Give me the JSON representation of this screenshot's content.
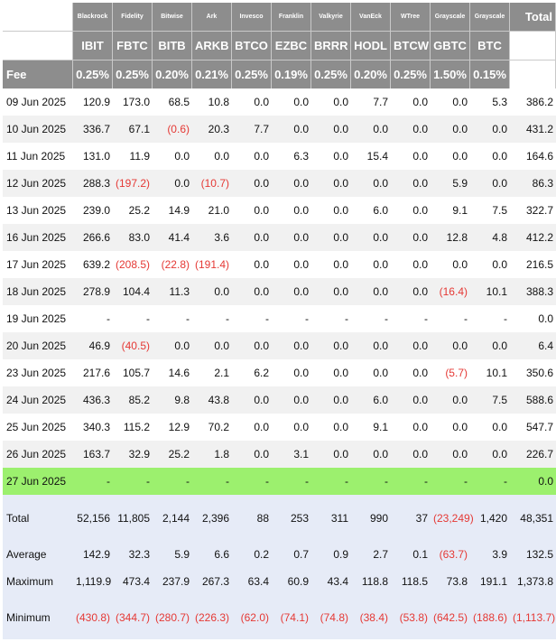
{
  "issuers": [
    "Blackrock",
    "Fidelity",
    "Bitwise",
    "Ark",
    "Invesco",
    "Franklin",
    "Valkyrie",
    "VanEck",
    "WTree",
    "Grayscale",
    "Grayscale"
  ],
  "total_label": "Total",
  "tickers": [
    "IBIT",
    "FBTC",
    "BITB",
    "ARKB",
    "BTCO",
    "EZBC",
    "BRRR",
    "HODL",
    "BTCW",
    "GBTC",
    "BTC"
  ],
  "fee_label": "Fee",
  "fees": [
    "0.25%",
    "0.25%",
    "0.20%",
    "0.21%",
    "0.25%",
    "0.19%",
    "0.25%",
    "0.20%",
    "0.25%",
    "1.50%",
    "0.15%"
  ],
  "rows": [
    {
      "date": "09 Jun 2025",
      "values": [
        "120.9",
        "173.0",
        "68.5",
        "10.8",
        "0.0",
        "0.0",
        "0.0",
        "7.7",
        "0.0",
        "0.0",
        "5.3"
      ],
      "total": "386.2"
    },
    {
      "date": "10 Jun 2025",
      "values": [
        "336.7",
        "67.1",
        "(0.6)",
        "20.3",
        "7.7",
        "0.0",
        "0.0",
        "0.0",
        "0.0",
        "0.0",
        "0.0"
      ],
      "total": "431.2"
    },
    {
      "date": "11 Jun 2025",
      "values": [
        "131.0",
        "11.9",
        "0.0",
        "0.0",
        "0.0",
        "6.3",
        "0.0",
        "15.4",
        "0.0",
        "0.0",
        "0.0"
      ],
      "total": "164.6"
    },
    {
      "date": "12 Jun 2025",
      "values": [
        "288.3",
        "(197.2)",
        "0.0",
        "(10.7)",
        "0.0",
        "0.0",
        "0.0",
        "0.0",
        "0.0",
        "5.9",
        "0.0"
      ],
      "total": "86.3"
    },
    {
      "date": "13 Jun 2025",
      "values": [
        "239.0",
        "25.2",
        "14.9",
        "21.0",
        "0.0",
        "0.0",
        "0.0",
        "6.0",
        "0.0",
        "9.1",
        "7.5"
      ],
      "total": "322.7"
    },
    {
      "date": "16 Jun 2025",
      "values": [
        "266.6",
        "83.0",
        "41.4",
        "3.6",
        "0.0",
        "0.0",
        "0.0",
        "0.0",
        "0.0",
        "12.8",
        "4.8"
      ],
      "total": "412.2"
    },
    {
      "date": "17 Jun 2025",
      "values": [
        "639.2",
        "(208.5)",
        "(22.8)",
        "(191.4)",
        "0.0",
        "0.0",
        "0.0",
        "0.0",
        "0.0",
        "0.0",
        "0.0"
      ],
      "total": "216.5"
    },
    {
      "date": "18 Jun 2025",
      "values": [
        "278.9",
        "104.4",
        "11.3",
        "0.0",
        "0.0",
        "0.0",
        "0.0",
        "0.0",
        "0.0",
        "(16.4)",
        "10.1"
      ],
      "total": "388.3"
    },
    {
      "date": "19 Jun 2025",
      "values": [
        "-",
        "-",
        "-",
        "-",
        "-",
        "-",
        "-",
        "-",
        "-",
        "-",
        "-"
      ],
      "total": "0.0"
    },
    {
      "date": "20 Jun 2025",
      "values": [
        "46.9",
        "(40.5)",
        "0.0",
        "0.0",
        "0.0",
        "0.0",
        "0.0",
        "0.0",
        "0.0",
        "0.0",
        "0.0"
      ],
      "total": "6.4"
    },
    {
      "date": "23 Jun 2025",
      "values": [
        "217.6",
        "105.7",
        "14.6",
        "2.1",
        "6.2",
        "0.0",
        "0.0",
        "0.0",
        "0.0",
        "(5.7)",
        "10.1"
      ],
      "total": "350.6"
    },
    {
      "date": "24 Jun 2025",
      "values": [
        "436.3",
        "85.2",
        "9.8",
        "43.8",
        "0.0",
        "0.0",
        "0.0",
        "6.0",
        "0.0",
        "0.0",
        "7.5"
      ],
      "total": "588.6"
    },
    {
      "date": "25 Jun 2025",
      "values": [
        "340.3",
        "115.2",
        "12.9",
        "70.2",
        "0.0",
        "0.0",
        "0.0",
        "9.1",
        "0.0",
        "0.0",
        "0.0"
      ],
      "total": "547.7"
    },
    {
      "date": "26 Jun 2025",
      "values": [
        "163.7",
        "32.9",
        "25.2",
        "1.8",
        "0.0",
        "3.1",
        "0.0",
        "0.0",
        "0.0",
        "0.0",
        "0.0"
      ],
      "total": "226.7"
    },
    {
      "date": "27 Jun 2025",
      "values": [
        "-",
        "-",
        "-",
        "-",
        "-",
        "-",
        "-",
        "-",
        "-",
        "-",
        "-"
      ],
      "total": "0.0"
    }
  ],
  "stats": [
    {
      "label": "Total",
      "values": [
        "52,156",
        "11,805",
        "2,144",
        "2,396",
        "88",
        "253",
        "311",
        "990",
        "37",
        "(23,249)",
        "1,420"
      ],
      "total": "48,351"
    },
    {
      "label": "Average",
      "values": [
        "142.9",
        "32.3",
        "5.9",
        "6.6",
        "0.2",
        "0.7",
        "0.9",
        "2.7",
        "0.1",
        "(63.7)",
        "3.9"
      ],
      "total": "132.5"
    },
    {
      "label": "Maximum",
      "values": [
        "1,119.9",
        "473.4",
        "237.9",
        "267.3",
        "63.4",
        "60.9",
        "43.4",
        "118.8",
        "118.5",
        "73.8",
        "191.1"
      ],
      "total": "1,373.8"
    },
    {
      "label": "Minimum",
      "values": [
        "(430.8)",
        "(344.7)",
        "(280.7)",
        "(226.3)",
        "(62.0)",
        "(74.1)",
        "(74.8)",
        "(38.4)",
        "(53.8)",
        "(642.5)",
        "(188.6)"
      ],
      "total": "(1,113.7)"
    }
  ],
  "colors": {
    "header_bg": "#8d8d8d",
    "negative": "#e53935",
    "highlight_row": "#9cf06e",
    "stats_bg": "#e6ebf7"
  }
}
